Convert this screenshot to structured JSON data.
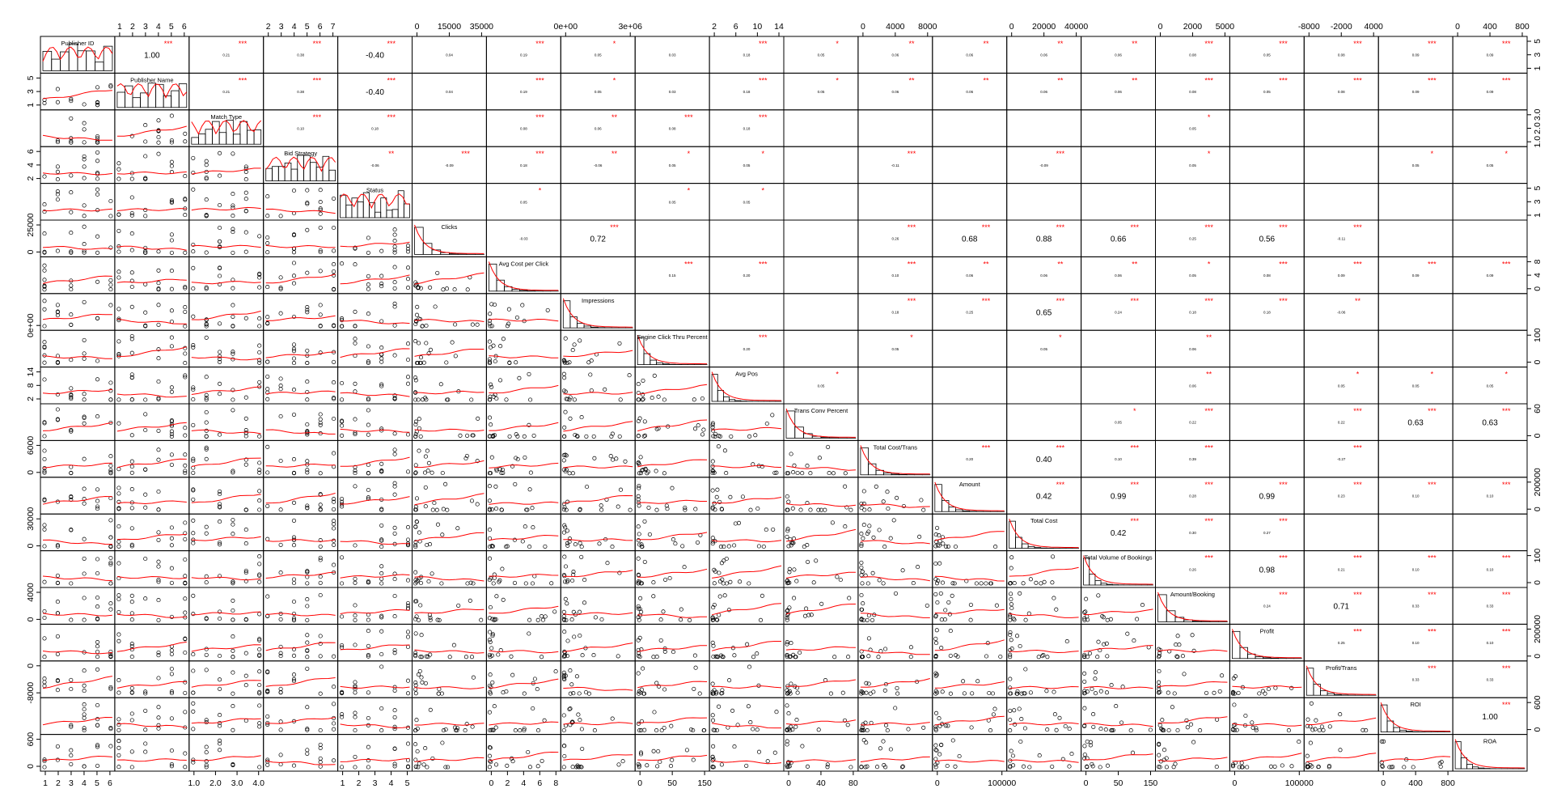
{
  "chart_data": {
    "type": "scatter",
    "title": "",
    "variables": [
      "Publisher ID",
      "Publisher Name",
      "Match Type",
      "Bid Strategy",
      "Status",
      "Clicks",
      "Avg Cost per Click",
      "Impressions",
      "Engine Click Thru Percent",
      "Avg Pos",
      "Trans Conv Percent",
      "Total Cost/Trans",
      "Amount",
      "Total Cost",
      "Total Volume of Bookings",
      "Amount/Booking",
      "Profit",
      "Profit/Trans",
      "ROI",
      "ROA"
    ],
    "correlation_cells": [
      {
        "r": 0,
        "c": 1,
        "text": "1.00",
        "stars": "***"
      },
      {
        "r": 0,
        "c": 2,
        "text": "0.21",
        "stars": "***"
      },
      {
        "r": 0,
        "c": 3,
        "text": "0.38",
        "stars": "***"
      },
      {
        "r": 0,
        "c": 4,
        "text": "-0.40",
        "stars": "***"
      },
      {
        "r": 0,
        "c": 5,
        "text": "0.04",
        "stars": ""
      },
      {
        "r": 0,
        "c": 6,
        "text": "0.19",
        "stars": "***"
      },
      {
        "r": 0,
        "c": 7,
        "text": "0.05",
        "stars": "*"
      },
      {
        "r": 0,
        "c": 8,
        "text": "0.03",
        "stars": ""
      },
      {
        "r": 0,
        "c": 9,
        "text": "0.18",
        "stars": "***"
      },
      {
        "r": 0,
        "c": 10,
        "text": "0.05",
        "stars": "*"
      },
      {
        "r": 0,
        "c": 11,
        "text": "0.06",
        "stars": "**"
      },
      {
        "r": 0,
        "c": 12,
        "text": "0.06",
        "stars": "**"
      },
      {
        "r": 0,
        "c": 13,
        "text": "0.06",
        "stars": "**"
      },
      {
        "r": 0,
        "c": 14,
        "text": "0.06",
        "stars": "**"
      },
      {
        "r": 0,
        "c": 15,
        "text": "0.08",
        "stars": "***"
      },
      {
        "r": 0,
        "c": 16,
        "text": "0.05",
        "stars": "***"
      },
      {
        "r": 0,
        "c": 17,
        "text": "0.08",
        "stars": "***"
      },
      {
        "r": 0,
        "c": 18,
        "text": "0.09",
        "stars": "***"
      },
      {
        "r": 0,
        "c": 19,
        "text": "0.09",
        "stars": "***"
      },
      {
        "r": 1,
        "c": 2,
        "text": "0.21",
        "stars": "***"
      },
      {
        "r": 1,
        "c": 3,
        "text": "0.38",
        "stars": "***"
      },
      {
        "r": 1,
        "c": 4,
        "text": "-0.40",
        "stars": "***"
      },
      {
        "r": 1,
        "c": 5,
        "text": "0.04",
        "stars": ""
      },
      {
        "r": 1,
        "c": 6,
        "text": "0.19",
        "stars": "***"
      },
      {
        "r": 1,
        "c": 7,
        "text": "0.05",
        "stars": "*"
      },
      {
        "r": 1,
        "c": 8,
        "text": "0.03",
        "stars": ""
      },
      {
        "r": 1,
        "c": 9,
        "text": "0.18",
        "stars": "***"
      },
      {
        "r": 1,
        "c": 10,
        "text": "0.05",
        "stars": "*"
      },
      {
        "r": 1,
        "c": 11,
        "text": "0.06",
        "stars": "**"
      },
      {
        "r": 1,
        "c": 12,
        "text": "0.06",
        "stars": "**"
      },
      {
        "r": 1,
        "c": 13,
        "text": "0.06",
        "stars": "**"
      },
      {
        "r": 1,
        "c": 14,
        "text": "0.06",
        "stars": "**"
      },
      {
        "r": 1,
        "c": 15,
        "text": "0.08",
        "stars": "***"
      },
      {
        "r": 1,
        "c": 16,
        "text": "0.05",
        "stars": "***"
      },
      {
        "r": 1,
        "c": 17,
        "text": "0.08",
        "stars": "***"
      },
      {
        "r": 1,
        "c": 18,
        "text": "0.09",
        "stars": "***"
      },
      {
        "r": 1,
        "c": 19,
        "text": "0.09",
        "stars": "***"
      },
      {
        "r": 2,
        "c": 3,
        "text": "0.10",
        "stars": "***"
      },
      {
        "r": 2,
        "c": 4,
        "text": "0.18",
        "stars": "***"
      },
      {
        "r": 2,
        "c": 6,
        "text": "0.08",
        "stars": "***"
      },
      {
        "r": 2,
        "c": 7,
        "text": "0.06",
        "stars": "**"
      },
      {
        "r": 2,
        "c": 8,
        "text": "0.08",
        "stars": "***"
      },
      {
        "r": 2,
        "c": 9,
        "text": "0.18",
        "stars": "***"
      },
      {
        "r": 2,
        "c": 15,
        "text": "0.05",
        "stars": "*"
      },
      {
        "r": 3,
        "c": 4,
        "text": "-0.06",
        "stars": "**"
      },
      {
        "r": 3,
        "c": 5,
        "text": "-0.09",
        "stars": "***"
      },
      {
        "r": 3,
        "c": 6,
        "text": "0.18",
        "stars": "***"
      },
      {
        "r": 3,
        "c": 7,
        "text": "-0.06",
        "stars": "**"
      },
      {
        "r": 3,
        "c": 8,
        "text": "0.05",
        "stars": "*"
      },
      {
        "r": 3,
        "c": 9,
        "text": "0.05",
        "stars": "*"
      },
      {
        "r": 3,
        "c": 11,
        "text": "-0.11",
        "stars": "***"
      },
      {
        "r": 3,
        "c": 13,
        "text": "-0.09",
        "stars": "***"
      },
      {
        "r": 3,
        "c": 15,
        "text": "0.05",
        "stars": "*"
      },
      {
        "r": 3,
        "c": 18,
        "text": "0.05",
        "stars": "*"
      },
      {
        "r": 3,
        "c": 19,
        "text": "0.05",
        "stars": "*"
      },
      {
        "r": 4,
        "c": 6,
        "text": "0.05",
        "stars": "*"
      },
      {
        "r": 4,
        "c": 8,
        "text": "0.05",
        "stars": "*"
      },
      {
        "r": 4,
        "c": 9,
        "text": "0.05",
        "stars": "*"
      },
      {
        "r": 5,
        "c": 6,
        "text": "-0.03",
        "stars": ""
      },
      {
        "r": 5,
        "c": 7,
        "text": "0.72",
        "stars": "***"
      },
      {
        "r": 5,
        "c": 11,
        "text": "0.26",
        "stars": "***"
      },
      {
        "r": 5,
        "c": 12,
        "text": "0.68",
        "stars": "***"
      },
      {
        "r": 5,
        "c": 13,
        "text": "0.88",
        "stars": "***"
      },
      {
        "r": 5,
        "c": 14,
        "text": "0.66",
        "stars": "***"
      },
      {
        "r": 5,
        "c": 15,
        "text": "0.25",
        "stars": "***"
      },
      {
        "r": 5,
        "c": 16,
        "text": "0.56",
        "stars": "***"
      },
      {
        "r": 5,
        "c": 17,
        "text": "-0.11",
        "stars": "***"
      },
      {
        "r": 6,
        "c": 8,
        "text": "0.15",
        "stars": "***"
      },
      {
        "r": 6,
        "c": 9,
        "text": "0.20",
        "stars": "***"
      },
      {
        "r": 6,
        "c": 11,
        "text": "0.10",
        "stars": "***"
      },
      {
        "r": 6,
        "c": 12,
        "text": "0.06",
        "stars": "**"
      },
      {
        "r": 6,
        "c": 13,
        "text": "0.06",
        "stars": "**"
      },
      {
        "r": 6,
        "c": 14,
        "text": "0.06",
        "stars": "**"
      },
      {
        "r": 6,
        "c": 15,
        "text": "0.05",
        "stars": "*"
      },
      {
        "r": 6,
        "c": 16,
        "text": "0.08",
        "stars": "***"
      },
      {
        "r": 6,
        "c": 17,
        "text": "0.09",
        "stars": "***"
      },
      {
        "r": 6,
        "c": 18,
        "text": "0.09",
        "stars": "***"
      },
      {
        "r": 6,
        "c": 19,
        "text": "0.09",
        "stars": "***"
      },
      {
        "r": 7,
        "c": 11,
        "text": "0.18",
        "stars": "***"
      },
      {
        "r": 7,
        "c": 12,
        "text": "0.25",
        "stars": "***"
      },
      {
        "r": 7,
        "c": 13,
        "text": "0.65",
        "stars": "***"
      },
      {
        "r": 7,
        "c": 14,
        "text": "0.24",
        "stars": "***"
      },
      {
        "r": 7,
        "c": 15,
        "text": "0.18",
        "stars": "***"
      },
      {
        "r": 7,
        "c": 16,
        "text": "0.18",
        "stars": "***"
      },
      {
        "r": 7,
        "c": 17,
        "text": "-0.06",
        "stars": "**"
      },
      {
        "r": 8,
        "c": 9,
        "text": "0.20",
        "stars": "***"
      },
      {
        "r": 8,
        "c": 11,
        "text": "0.05",
        "stars": "*"
      },
      {
        "r": 8,
        "c": 13,
        "text": "0.05",
        "stars": "*"
      },
      {
        "r": 8,
        "c": 15,
        "text": "0.06",
        "stars": "**"
      },
      {
        "r": 9,
        "c": 10,
        "text": "0.05",
        "stars": "*"
      },
      {
        "r": 9,
        "c": 15,
        "text": "0.06",
        "stars": "**"
      },
      {
        "r": 9,
        "c": 17,
        "text": "0.05",
        "stars": "*"
      },
      {
        "r": 9,
        "c": 18,
        "text": "0.05",
        "stars": "*"
      },
      {
        "r": 9,
        "c": 19,
        "text": "0.05",
        "stars": "*"
      },
      {
        "r": 10,
        "c": 14,
        "text": "0.05",
        "stars": "*"
      },
      {
        "r": 10,
        "c": 15,
        "text": "0.22",
        "stars": "***"
      },
      {
        "r": 10,
        "c": 17,
        "text": "0.22",
        "stars": "***"
      },
      {
        "r": 10,
        "c": 18,
        "text": "0.63",
        "stars": "***"
      },
      {
        "r": 10,
        "c": 19,
        "text": "0.63",
        "stars": "***"
      },
      {
        "r": 11,
        "c": 12,
        "text": "0.20",
        "stars": "***"
      },
      {
        "r": 11,
        "c": 13,
        "text": "0.40",
        "stars": "***"
      },
      {
        "r": 11,
        "c": 14,
        "text": "0.10",
        "stars": "***"
      },
      {
        "r": 11,
        "c": 15,
        "text": "0.39",
        "stars": "***"
      },
      {
        "r": 11,
        "c": 17,
        "text": "-0.27",
        "stars": "***"
      },
      {
        "r": 12,
        "c": 13,
        "text": "0.42",
        "stars": "***"
      },
      {
        "r": 12,
        "c": 14,
        "text": "0.99",
        "stars": "***"
      },
      {
        "r": 12,
        "c": 15,
        "text": "0.28",
        "stars": "***"
      },
      {
        "r": 12,
        "c": 16,
        "text": "0.99",
        "stars": "***"
      },
      {
        "r": 12,
        "c": 17,
        "text": "0.23",
        "stars": "***"
      },
      {
        "r": 12,
        "c": 18,
        "text": "0.10",
        "stars": "***"
      },
      {
        "r": 12,
        "c": 19,
        "text": "0.10",
        "stars": "***"
      },
      {
        "r": 13,
        "c": 14,
        "text": "0.42",
        "stars": "***"
      },
      {
        "r": 13,
        "c": 15,
        "text": "0.30",
        "stars": "***"
      },
      {
        "r": 13,
        "c": 16,
        "text": "0.27",
        "stars": "***"
      },
      {
        "r": 14,
        "c": 15,
        "text": "0.26",
        "stars": "***"
      },
      {
        "r": 14,
        "c": 16,
        "text": "0.98",
        "stars": "***"
      },
      {
        "r": 14,
        "c": 17,
        "text": "0.21",
        "stars": "***"
      },
      {
        "r": 14,
        "c": 18,
        "text": "0.10",
        "stars": "***"
      },
      {
        "r": 14,
        "c": 19,
        "text": "0.10",
        "stars": "***"
      },
      {
        "r": 15,
        "c": 16,
        "text": "0.24",
        "stars": "***"
      },
      {
        "r": 15,
        "c": 17,
        "text": "0.71",
        "stars": "***"
      },
      {
        "r": 15,
        "c": 18,
        "text": "0.33",
        "stars": "***"
      },
      {
        "r": 15,
        "c": 19,
        "text": "0.33",
        "stars": "***"
      },
      {
        "r": 16,
        "c": 17,
        "text": "0.25",
        "stars": "***"
      },
      {
        "r": 16,
        "c": 18,
        "text": "0.10",
        "stars": "***"
      },
      {
        "r": 16,
        "c": 19,
        "text": "0.10",
        "stars": "***"
      },
      {
        "r": 17,
        "c": 18,
        "text": "0.33",
        "stars": "***"
      },
      {
        "r": 17,
        "c": 19,
        "text": "0.33",
        "stars": "***"
      },
      {
        "r": 18,
        "c": 19,
        "text": "1.00",
        "stars": "***"
      }
    ],
    "axis_ticks": {
      "top": [
        {
          "col": 1,
          "labels": [
            "1",
            "2",
            "3",
            "4",
            "5",
            "6"
          ]
        },
        {
          "col": 3,
          "labels": [
            "2",
            "3",
            "4",
            "5",
            "6",
            "7"
          ]
        },
        {
          "col": 5,
          "labels": [
            "0",
            "15000",
            "35000"
          ]
        },
        {
          "col": 7,
          "labels": [
            "0e+00",
            "3e+06"
          ]
        },
        {
          "col": 9,
          "labels": [
            "2",
            "6",
            "10",
            "14"
          ]
        },
        {
          "col": 11,
          "labels": [
            "0",
            "4000",
            "8000"
          ]
        },
        {
          "col": 13,
          "labels": [
            "0",
            "20000",
            "40000"
          ]
        },
        {
          "col": 15,
          "labels": [
            "0",
            "2000",
            "5000"
          ]
        },
        {
          "col": 17,
          "labels": [
            "-8000",
            "-2000",
            "4000"
          ]
        },
        {
          "col": 19,
          "labels": [
            "0",
            "400",
            "800"
          ]
        }
      ],
      "bottom": [
        {
          "col": 0,
          "labels": [
            "1",
            "2",
            "3",
            "4",
            "5",
            "6"
          ]
        },
        {
          "col": 2,
          "labels": [
            "1.0",
            "2.0",
            "3.0",
            "4.0"
          ]
        },
        {
          "col": 4,
          "labels": [
            "1",
            "2",
            "3",
            "4",
            "5"
          ]
        },
        {
          "col": 6,
          "labels": [
            "0",
            "2",
            "4",
            "6",
            "8"
          ]
        },
        {
          "col": 8,
          "labels": [
            "0",
            "50",
            "150"
          ]
        },
        {
          "col": 10,
          "labels": [
            "0",
            "40",
            "80"
          ]
        },
        {
          "col": 12,
          "labels": [
            "0",
            "100000"
          ]
        },
        {
          "col": 14,
          "labels": [
            "0",
            "50",
            "150"
          ]
        },
        {
          "col": 16,
          "labels": [
            "0",
            "100000"
          ]
        },
        {
          "col": 18,
          "labels": [
            "0",
            "400",
            "800"
          ]
        }
      ],
      "left": [
        {
          "row": 1,
          "labels": [
            "1",
            "3",
            "5"
          ]
        },
        {
          "row": 3,
          "labels": [
            "2",
            "4",
            "6"
          ]
        },
        {
          "row": 5,
          "labels": [
            "0",
            "25000"
          ]
        },
        {
          "row": 7,
          "labels": [
            "0e+00"
          ]
        },
        {
          "row": 9,
          "labels": [
            "2",
            "8",
            "14"
          ]
        },
        {
          "row": 11,
          "labels": [
            "0",
            "6000"
          ]
        },
        {
          "row": 13,
          "labels": [
            "0",
            "30000"
          ]
        },
        {
          "row": 15,
          "labels": [
            "0",
            "4000"
          ]
        },
        {
          "row": 17,
          "labels": [
            "-8000",
            "0"
          ]
        },
        {
          "row": 19,
          "labels": [
            "0",
            "600"
          ]
        }
      ],
      "right": [
        {
          "row": 0,
          "labels": [
            "1",
            "3",
            "5"
          ]
        },
        {
          "row": 2,
          "labels": [
            "1.0",
            "2.0",
            "3.0"
          ]
        },
        {
          "row": 4,
          "labels": [
            "1",
            "3",
            "5"
          ]
        },
        {
          "row": 6,
          "labels": [
            "0",
            "4",
            "8"
          ]
        },
        {
          "row": 8,
          "labels": [
            "0",
            "100"
          ]
        },
        {
          "row": 10,
          "labels": [
            "0",
            "60"
          ]
        },
        {
          "row": 12,
          "labels": [
            "0",
            "200000"
          ]
        },
        {
          "row": 14,
          "labels": [
            "0",
            "100"
          ]
        },
        {
          "row": 16,
          "labels": [
            "0",
            "200000"
          ]
        },
        {
          "row": 18,
          "labels": [
            "0",
            "600"
          ]
        }
      ]
    },
    "grid": false,
    "legend": "none",
    "colors": {
      "points": "#000000",
      "smoother": "#ff0000",
      "stars": "#ff0000",
      "histogram": "#000000",
      "frame": "#000000"
    }
  }
}
